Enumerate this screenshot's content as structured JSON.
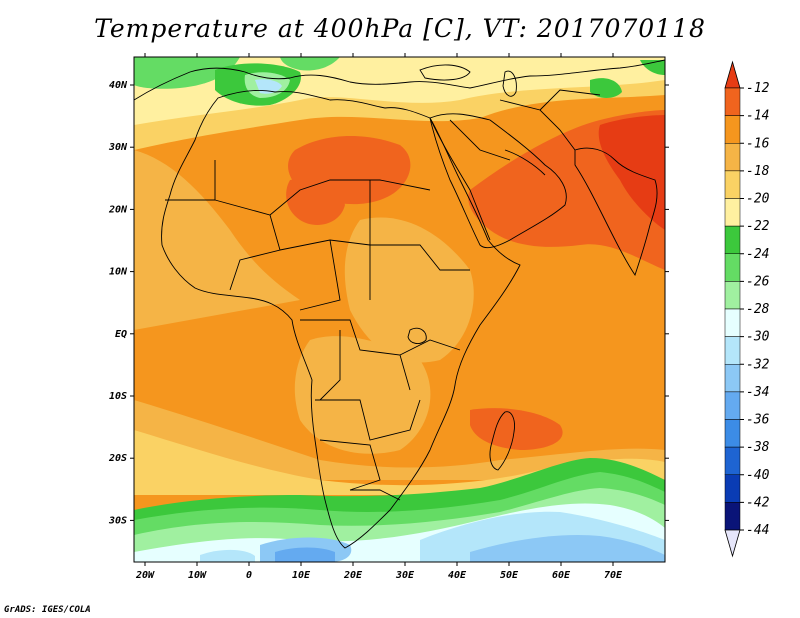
{
  "title": "Temperature at 400hPa [C], VT: 2017070118",
  "credit": "GrADS: IGES/COLA",
  "map": {
    "lon_ticks": [
      "20W",
      "10W",
      "0",
      "10E",
      "20E",
      "30E",
      "40E",
      "50E",
      "60E",
      "70E"
    ],
    "lat_ticks": [
      "40N",
      "30N",
      "20N",
      "10N",
      "EQ",
      "10S",
      "20S",
      "30S"
    ]
  },
  "colorbar": {
    "levels": [
      "-12",
      "-14",
      "-16",
      "-18",
      "-20",
      "-22",
      "-24",
      "-26",
      "-28",
      "-30",
      "-32",
      "-34",
      "-36",
      "-38",
      "-40",
      "-42",
      "-44"
    ],
    "colors": [
      "#e63c14",
      "#f0641e",
      "#f5961e",
      "#f5b446",
      "#fad264",
      "#fff0a0",
      "#3cc83c",
      "#64dc64",
      "#a0f0a0",
      "#e6ffff",
      "#b4e6fa",
      "#8cc8f5",
      "#64aaf0",
      "#3c8ce6",
      "#1e64d2",
      "#0a3cb4",
      "#0a1478",
      "#e6e6fa"
    ]
  }
}
